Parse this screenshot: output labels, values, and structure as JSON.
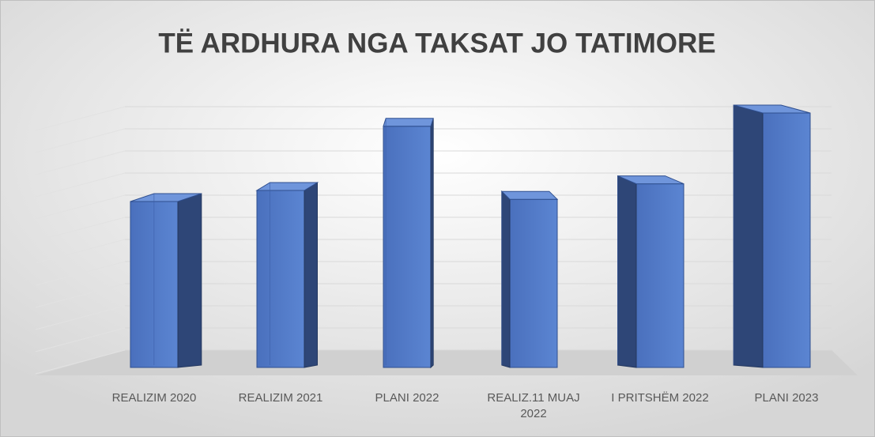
{
  "chart_data": {
    "type": "bar3d",
    "title": "TË ARDHURA NGA TAKSAT JO TATIMORE",
    "categories": [
      "REALIZIM 2020",
      "REALIZIM 2021",
      "PLANI 2022",
      "REALIZ.11 MUAJ 2022",
      "I PRITSHËM 2022",
      "PLANI 2023"
    ],
    "values": [
      7.5,
      8,
      10.9,
      7.6,
      8.3,
      11.5
    ],
    "color": "#4472c4",
    "ylim": [
      0,
      12
    ],
    "yticks": [
      0,
      1,
      2,
      3,
      4,
      5,
      6,
      7,
      8,
      9,
      10,
      11
    ],
    "grid": true
  }
}
